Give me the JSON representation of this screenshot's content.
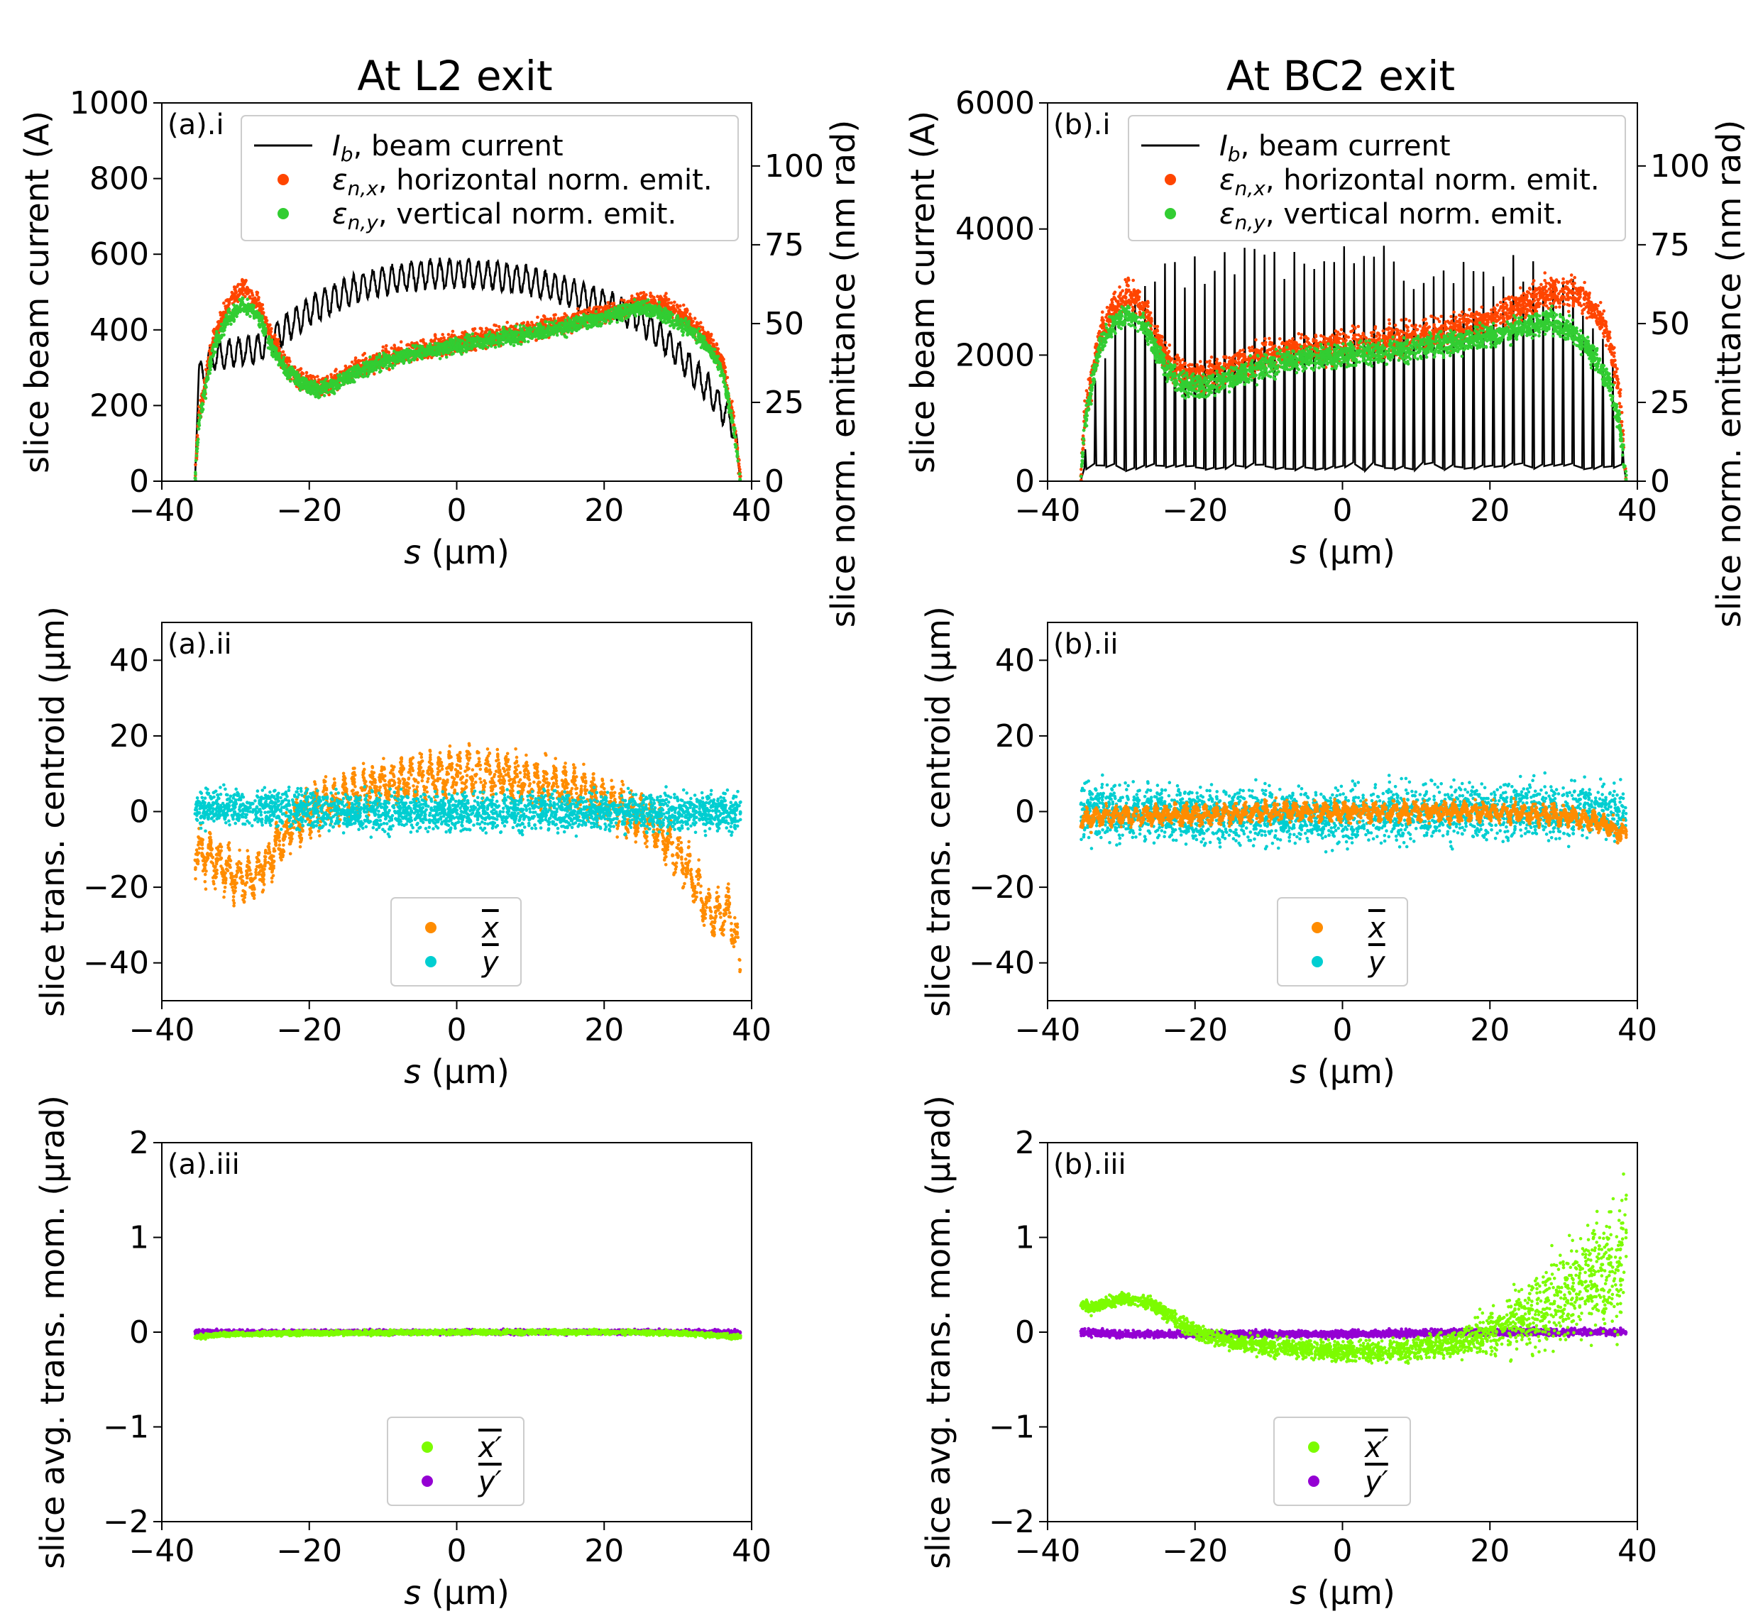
{
  "figure": {
    "column_titles": [
      "At L2 exit",
      "At BC2 exit"
    ],
    "xlabel_var": "s",
    "xlabel_unit": " (μm)"
  },
  "chart_data": [
    {
      "id": "a_i",
      "type": "line",
      "panel_label": "(a).i",
      "xlabel": "s (μm)",
      "ylabel": "slice beam current (A)",
      "y2label": "slice norm. emittance (nm rad)",
      "xlim": [
        -40,
        40
      ],
      "ylim": [
        0,
        1000
      ],
      "y2lim": [
        0,
        120
      ],
      "xticks": [
        -40,
        -20,
        0,
        20,
        40
      ],
      "yticks": [
        0,
        200,
        400,
        600,
        800,
        1000
      ],
      "y2ticks": [
        0,
        25,
        50,
        75,
        100
      ],
      "legend": [
        {
          "kind": "line",
          "color": "#000000",
          "sym": "I",
          "sub": "b",
          "text": ", beam current"
        },
        {
          "kind": "dot",
          "color": "#ff4500",
          "sym": "ε",
          "sub": "n,x",
          "text": ", horizontal norm. emit."
        },
        {
          "kind": "dot",
          "color": "#32cd32",
          "sym": "ε",
          "sub": "n,y",
          "text": ", vertical norm. emit."
        }
      ],
      "series": [
        {
          "name": "I_b, beam current",
          "axis": "left",
          "style": "line",
          "color": "#000000",
          "osc_period": 1.3,
          "osc_amp": 35,
          "s": [
            -35.5,
            -35,
            -33,
            -30,
            -27,
            -24,
            -20,
            -15,
            -10,
            -5,
            0,
            5,
            10,
            15,
            20,
            25,
            30,
            35,
            37.5,
            38.5
          ],
          "values": [
            0,
            270,
            330,
            340,
            350,
            390,
            450,
            500,
            530,
            545,
            550,
            545,
            530,
            500,
            470,
            430,
            340,
            220,
            150,
            0
          ]
        },
        {
          "name": "εn,x horizontal norm. emit.",
          "axis": "right",
          "style": "scatter",
          "color": "#ff4500",
          "spread": 2.5,
          "s": [
            -35.5,
            -35,
            -33,
            -31,
            -29,
            -27,
            -25,
            -23,
            -21,
            -19,
            -17,
            -15,
            -10,
            -5,
            0,
            5,
            10,
            15,
            20,
            25,
            28,
            31,
            34,
            36,
            37.5,
            38.5
          ],
          "values": [
            0,
            20,
            45,
            56,
            62,
            57,
            45,
            36,
            32,
            30,
            31,
            34,
            39,
            42,
            44,
            46,
            48,
            50,
            53,
            57,
            56,
            52,
            45,
            38,
            20,
            0
          ]
        },
        {
          "name": "εn,y vertical norm. emit.",
          "axis": "right",
          "style": "scatter",
          "color": "#32cd32",
          "spread": 2.0,
          "s": [
            -35.5,
            -35,
            -33,
            -31,
            -29,
            -27,
            -25,
            -23,
            -21,
            -19,
            -17,
            -15,
            -10,
            -5,
            0,
            5,
            10,
            15,
            20,
            25,
            28,
            31,
            34,
            36,
            37.5,
            38.5
          ],
          "values": [
            0,
            18,
            42,
            52,
            56,
            53,
            42,
            35,
            31,
            29,
            30,
            33,
            38,
            41,
            43,
            45,
            47,
            49,
            52,
            55,
            53,
            49,
            43,
            35,
            18,
            0
          ]
        }
      ]
    },
    {
      "id": "b_i",
      "type": "line",
      "panel_label": "(b).i",
      "xlabel": "s (μm)",
      "ylabel": "slice beam current (A)",
      "y2label": "slice norm. emittance (nm rad)",
      "xlim": [
        -40,
        40
      ],
      "ylim": [
        0,
        6000
      ],
      "y2lim": [
        0,
        120
      ],
      "xticks": [
        -40,
        -20,
        0,
        20,
        40
      ],
      "yticks": [
        0,
        2000,
        4000,
        6000
      ],
      "y2ticks": [
        0,
        25,
        50,
        75,
        100
      ],
      "legend": [
        {
          "kind": "line",
          "color": "#000000",
          "sym": "I",
          "sub": "b",
          "text": ", beam current"
        },
        {
          "kind": "dot",
          "color": "#ff4500",
          "sym": "ε",
          "sub": "n,x",
          "text": ", horizontal norm. emit."
        },
        {
          "kind": "dot",
          "color": "#32cd32",
          "sym": "ε",
          "sub": "n,y",
          "text": ", vertical norm. emit."
        }
      ],
      "series": [
        {
          "name": "I_b, beam current (spike peaks)",
          "axis": "left",
          "style": "spikes",
          "color": "#000000",
          "baseline": 250,
          "spike_period": 1.35,
          "s": [
            -35.5,
            -34,
            -30,
            -25,
            -20,
            -10,
            0,
            10,
            20,
            30,
            36,
            38.5
          ],
          "values": [
            0,
            1500,
            3000,
            3300,
            3400,
            3450,
            3500,
            3450,
            3400,
            3200,
            2200,
            0
          ]
        },
        {
          "name": "εn,x horizontal norm. emit.",
          "axis": "right",
          "style": "scatter",
          "color": "#ff4500",
          "spread": 4,
          "s": [
            -35.5,
            -35,
            -33,
            -31,
            -29,
            -27,
            -25,
            -23,
            -21,
            -19,
            -15,
            -10,
            -5,
            0,
            5,
            10,
            15,
            20,
            25,
            28,
            31,
            34,
            36,
            37.5,
            38.5
          ],
          "values": [
            0,
            20,
            45,
            55,
            60,
            55,
            44,
            36,
            33,
            33,
            36,
            40,
            42,
            43,
            44,
            46,
            48,
            51,
            56,
            60,
            60,
            55,
            47,
            30,
            0
          ]
        },
        {
          "name": "εn,y vertical norm. emit.",
          "axis": "right",
          "style": "scatter",
          "color": "#32cd32",
          "spread": 3,
          "s": [
            -35.5,
            -35,
            -33,
            -31,
            -29,
            -27,
            -25,
            -23,
            -21,
            -19,
            -15,
            -10,
            -5,
            0,
            5,
            10,
            15,
            20,
            25,
            28,
            31,
            34,
            36,
            37.5,
            38.5
          ],
          "values": [
            0,
            18,
            42,
            50,
            53,
            50,
            40,
            33,
            30,
            30,
            33,
            37,
            39,
            40,
            41,
            42,
            44,
            46,
            49,
            51,
            48,
            40,
            32,
            20,
            0
          ]
        }
      ]
    },
    {
      "id": "a_ii",
      "type": "scatter",
      "panel_label": "(a).ii",
      "xlabel": "s (μm)",
      "ylabel": "slice trans. centroid (μm)",
      "xlim": [
        -40,
        40
      ],
      "ylim": [
        -50,
        50
      ],
      "xticks": [
        -40,
        -20,
        0,
        20,
        40
      ],
      "yticks": [
        -40,
        -20,
        0,
        20,
        40
      ],
      "legend": [
        {
          "kind": "dot",
          "color": "#ff8c00",
          "sym": "x",
          "overline": true
        },
        {
          "kind": "dot",
          "color": "#00ced1",
          "sym": "y",
          "overline": true
        }
      ],
      "series": [
        {
          "name": "x mean",
          "axis": "left",
          "style": "scatter",
          "color": "#ff8c00",
          "spread": 3,
          "osc_period": 1.3,
          "osc_amp": 4,
          "s": [
            -35.5,
            -34,
            -32,
            -30,
            -28,
            -26,
            -24,
            -22,
            -20,
            -15,
            -10,
            -5,
            0,
            5,
            10,
            15,
            20,
            25,
            28,
            31,
            33,
            35,
            37,
            38.5
          ],
          "values": [
            -10,
            -12,
            -14,
            -17,
            -18,
            -14,
            -8,
            -3,
            0,
            4,
            7,
            9,
            10,
            10,
            8,
            6,
            3,
            -2,
            -6,
            -14,
            -22,
            -28,
            -26,
            -40
          ]
        },
        {
          "name": "y mean",
          "axis": "left",
          "style": "scatter",
          "color": "#00ced1",
          "spread": 4,
          "s": [
            -35.5,
            -30,
            -25,
            -20,
            -10,
            0,
            10,
            20,
            30,
            38.5
          ],
          "values": [
            1,
            1,
            1,
            0.5,
            0,
            0,
            0,
            0,
            0,
            0
          ]
        }
      ]
    },
    {
      "id": "b_ii",
      "type": "scatter",
      "panel_label": "(b).ii",
      "xlabel": "s (μm)",
      "ylabel": "slice trans. centroid (μm)",
      "xlim": [
        -40,
        40
      ],
      "ylim": [
        -50,
        50
      ],
      "xticks": [
        -40,
        -20,
        0,
        20,
        40
      ],
      "yticks": [
        -40,
        -20,
        0,
        20,
        40
      ],
      "legend": [
        {
          "kind": "dot",
          "color": "#ff8c00",
          "sym": "x",
          "overline": true
        },
        {
          "kind": "dot",
          "color": "#00ced1",
          "sym": "y",
          "overline": true
        }
      ],
      "series": [
        {
          "name": "y mean",
          "axis": "left",
          "style": "scatter",
          "color": "#00ced1",
          "spread": 6,
          "s": [
            -35.5,
            -30,
            -25,
            -20,
            -10,
            0,
            10,
            20,
            30,
            38.5
          ],
          "values": [
            0,
            0,
            0,
            -1,
            -1,
            -1,
            0,
            0,
            0,
            0
          ]
        },
        {
          "name": "x mean",
          "axis": "left",
          "style": "scatter",
          "color": "#ff8c00",
          "spread": 1.5,
          "osc_period": 1.35,
          "osc_amp": 1.5,
          "s": [
            -35.5,
            -30,
            -20,
            -10,
            0,
            10,
            20,
            30,
            35,
            38.5
          ],
          "values": [
            -2,
            -1,
            -1,
            0,
            0,
            0,
            0,
            -1,
            -3,
            -6
          ]
        }
      ]
    },
    {
      "id": "a_iii",
      "type": "scatter",
      "panel_label": "(a).iii",
      "xlabel": "s (μm)",
      "ylabel": "slice avg. trans. mom. (μrad)",
      "xlim": [
        -40,
        40
      ],
      "ylim": [
        -2,
        2
      ],
      "xticks": [
        -40,
        -20,
        0,
        20,
        40
      ],
      "yticks": [
        -2,
        -1,
        0,
        1,
        2
      ],
      "legend": [
        {
          "kind": "dot",
          "color": "#7cfc00",
          "sym": "x′",
          "overline": true
        },
        {
          "kind": "dot",
          "color": "#9400d3",
          "sym": "y′",
          "overline": true
        }
      ],
      "series": [
        {
          "name": "y' mean",
          "axis": "left",
          "style": "scatter",
          "color": "#9400d3",
          "spread": 0.02,
          "s": [
            -35.5,
            -30,
            -20,
            0,
            20,
            30,
            38.5
          ],
          "values": [
            0,
            0,
            0,
            0,
            0,
            0,
            0
          ]
        },
        {
          "name": "x' mean",
          "axis": "left",
          "style": "scatter",
          "color": "#7cfc00",
          "spread": 0.02,
          "s": [
            -35.5,
            -30,
            -20,
            0,
            20,
            30,
            38.5
          ],
          "values": [
            -0.05,
            -0.02,
            -0.01,
            0,
            0,
            -0.01,
            -0.05
          ]
        }
      ]
    },
    {
      "id": "b_iii",
      "type": "scatter",
      "panel_label": "(b).iii",
      "xlabel": "s (μm)",
      "ylabel": "slice avg. trans. mom. (μrad)",
      "xlim": [
        -40,
        40
      ],
      "ylim": [
        -2,
        2
      ],
      "xticks": [
        -40,
        -20,
        0,
        20,
        40
      ],
      "yticks": [
        -2,
        -1,
        0,
        1,
        2
      ],
      "legend": [
        {
          "kind": "dot",
          "color": "#7cfc00",
          "sym": "x′",
          "overline": true
        },
        {
          "kind": "dot",
          "color": "#9400d3",
          "sym": "y′",
          "overline": true
        }
      ],
      "series": [
        {
          "name": "y' mean",
          "axis": "left",
          "style": "scatter",
          "color": "#9400d3",
          "spread": 0.03,
          "s": [
            -35.5,
            -30,
            -20,
            0,
            20,
            30,
            38.5
          ],
          "values": [
            0,
            -0.02,
            -0.02,
            -0.02,
            0,
            0,
            0
          ]
        },
        {
          "name": "x' mean",
          "axis": "left",
          "style": "scatter",
          "color": "#7cfc00",
          "spread": 0.12,
          "spread_growth": [
            -35.5,
            0.05,
            15,
            0.1,
            25,
            0.3,
            38.5,
            0.55
          ],
          "s": [
            -35.5,
            -34,
            -32,
            -30,
            -28,
            -26,
            -24,
            -22,
            -20,
            -15,
            -10,
            -5,
            0,
            5,
            10,
            15,
            20,
            25,
            28,
            31,
            34,
            36,
            37.5,
            38.5
          ],
          "values": [
            0.3,
            0.25,
            0.3,
            0.35,
            0.35,
            0.3,
            0.2,
            0.1,
            0.0,
            -0.1,
            -0.15,
            -0.18,
            -0.2,
            -0.2,
            -0.18,
            -0.12,
            0,
            0.15,
            0.3,
            0.45,
            0.6,
            0.65,
            0.7,
            1.1
          ]
        }
      ]
    }
  ]
}
